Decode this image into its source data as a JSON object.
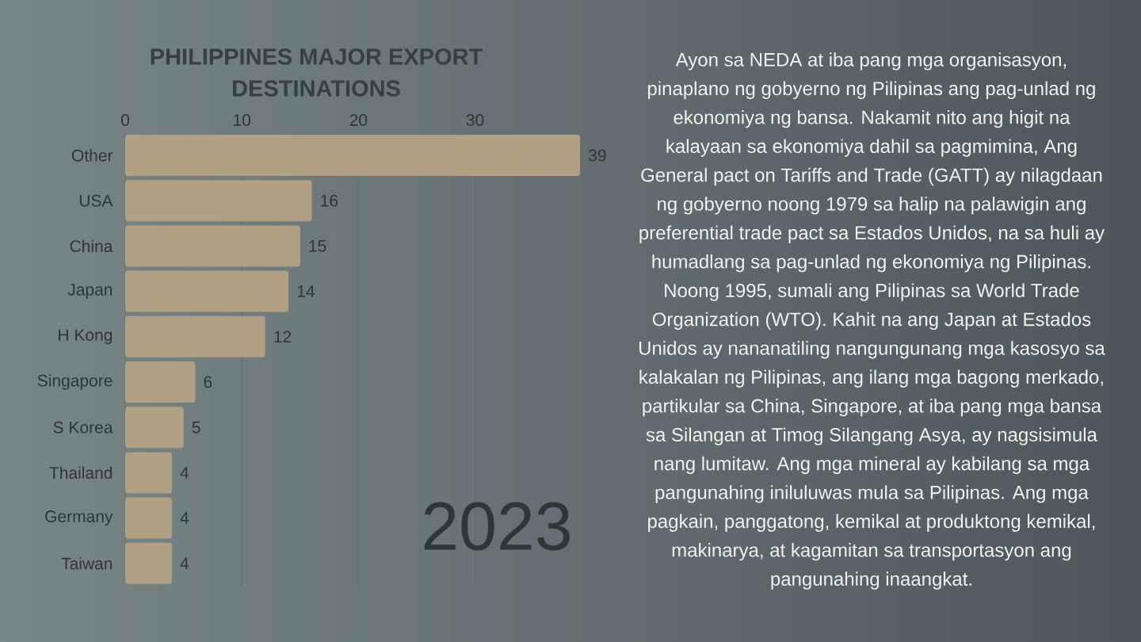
{
  "chart_data": {
    "type": "bar",
    "orientation": "horizontal",
    "title": "PHILIPPINES MAJOR EXPORT DESTINATIONS",
    "categories": [
      "Other",
      "USA",
      "China",
      "Japan",
      "H Kong",
      "Singapore",
      "S Korea",
      "Thailand",
      "Germany",
      "Taiwan"
    ],
    "values": [
      39,
      16,
      15,
      14,
      12,
      6,
      5,
      4,
      4,
      4
    ],
    "color": "#b2a085",
    "xlim": [
      0,
      39
    ],
    "xticks": [
      0,
      10,
      20,
      30
    ],
    "grid": "x",
    "data_labels": true,
    "annotations": [
      "2023",
      "Ayon sa NEDA at iba pang mga organisasyon, pinaplano ng gobyerno ng Pilipinas ang pag-unlad ng ekonomiya ng bansa. Nakamit nito ang higit na kalayaan sa ekonomiya dahil sa pagmimina, Ang General pact on Tariffs and Trade (GATT) ay nilagdaan ng gobyerno noong 1979 sa halip na palawigin ang preferential trade pact sa Estados Unidos, na sa huli ay humadlang sa pag-unlad ng ekonomiya ng Pilipinas. Noong 1995, sumali ang Pilipinas sa World Trade Organization (WTO). Kahit na ang Japan at Estados Unidos ay nananatiling nangungunang mga kasosyo sa kalakalan ng Pilipinas, ang ilang mga bagong merkado, partikular sa China, Singapore, at iba pang mga bansa sa Silangan at Timog Silangang Asya, ay nagsisimula nang lumitaw. Ang mga mineral ay kabilang sa mga pangunahing iniluluwas mula sa Pilipinas. Ang mga pagkain, panggatong, kemikal at produktong kemikal, makinarya, at kagamitan sa transportasyon ang pangunahing inaangkat."
    ]
  }
}
